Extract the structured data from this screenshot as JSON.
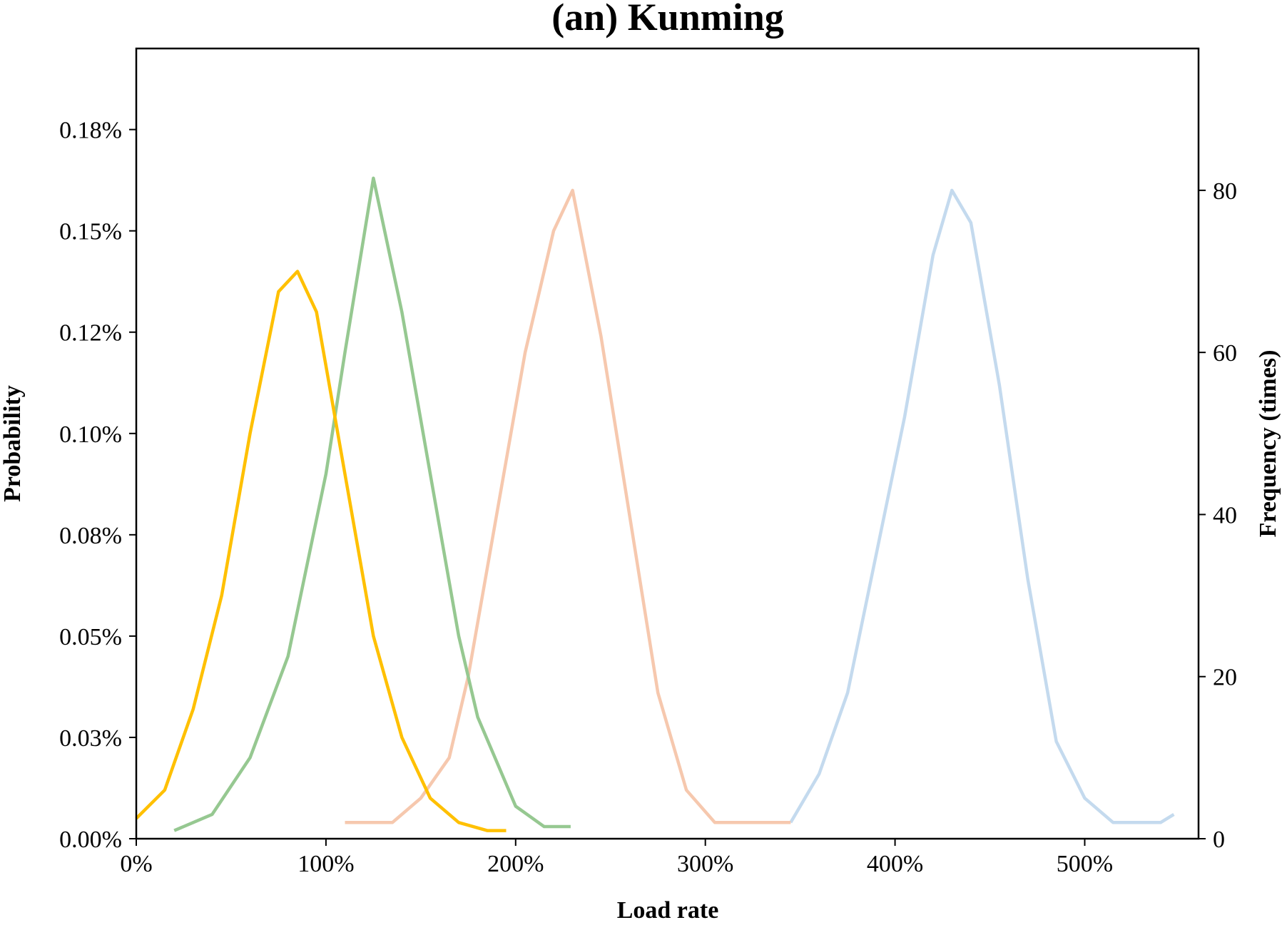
{
  "chart_data": {
    "type": "line",
    "title": "(an) Kunming",
    "xlabel": "Load rate",
    "ylabel_left": "Probability",
    "ylabel_right": "Frequency (times)",
    "xlim": [
      0,
      560
    ],
    "ylim_left": [
      0,
      0.195
    ],
    "ylim_right": [
      0,
      97.5
    ],
    "x_ticks": [
      {
        "value": 0,
        "label": "0%"
      },
      {
        "value": 100,
        "label": "100%"
      },
      {
        "value": 200,
        "label": "200%"
      },
      {
        "value": 300,
        "label": "300%"
      },
      {
        "value": 400,
        "label": "400%"
      },
      {
        "value": 500,
        "label": "500%"
      }
    ],
    "y_left_ticks": [
      {
        "value": 0.0,
        "label": "0.00%"
      },
      {
        "value": 0.025,
        "label": "0.03%"
      },
      {
        "value": 0.05,
        "label": "0.05%"
      },
      {
        "value": 0.075,
        "label": "0.08%"
      },
      {
        "value": 0.1,
        "label": "0.10%"
      },
      {
        "value": 0.125,
        "label": "0.12%"
      },
      {
        "value": 0.15,
        "label": "0.15%"
      },
      {
        "value": 0.175,
        "label": "0.18%"
      }
    ],
    "y_right_ticks": [
      {
        "value": 0,
        "label": "0"
      },
      {
        "value": 20,
        "label": "20"
      },
      {
        "value": 40,
        "label": "40"
      },
      {
        "value": 60,
        "label": "60"
      },
      {
        "value": 80,
        "label": "80"
      }
    ],
    "grid": false,
    "legend": "none",
    "series": [
      {
        "color": "#C4DAEE",
        "axis": "right",
        "x": [
          345,
          360,
          375,
          390,
          405,
          420,
          430,
          440,
          455,
          470,
          485,
          500,
          515,
          530,
          540,
          547
        ],
        "values": [
          2,
          8,
          18,
          35,
          52,
          72,
          80,
          76,
          56,
          32,
          12,
          5,
          2,
          2,
          2,
          3
        ]
      },
      {
        "color": "#F6C8AE",
        "axis": "right",
        "x": [
          110,
          135,
          150,
          165,
          175,
          190,
          205,
          220,
          230,
          245,
          260,
          275,
          290,
          305,
          320,
          345
        ],
        "values": [
          2,
          2,
          5,
          10,
          20,
          40,
          60,
          75,
          80,
          62,
          40,
          18,
          6,
          2,
          2,
          2
        ]
      },
      {
        "color": "#96C891",
        "axis": "left",
        "x": [
          20,
          40,
          60,
          80,
          100,
          110,
          125,
          140,
          155,
          170,
          180,
          200,
          215,
          229
        ],
        "values": [
          0.002,
          0.006,
          0.02,
          0.045,
          0.09,
          0.12,
          0.163,
          0.13,
          0.09,
          0.05,
          0.03,
          0.008,
          0.003,
          0.003
        ]
      },
      {
        "color": "#FFC000",
        "axis": "left",
        "x": [
          0,
          15,
          30,
          45,
          60,
          75,
          85,
          95,
          110,
          125,
          140,
          155,
          170,
          185,
          195
        ],
        "values": [
          0.005,
          0.012,
          0.032,
          0.06,
          0.1,
          0.135,
          0.14,
          0.13,
          0.09,
          0.05,
          0.025,
          0.01,
          0.004,
          0.002,
          0.002
        ]
      }
    ]
  }
}
